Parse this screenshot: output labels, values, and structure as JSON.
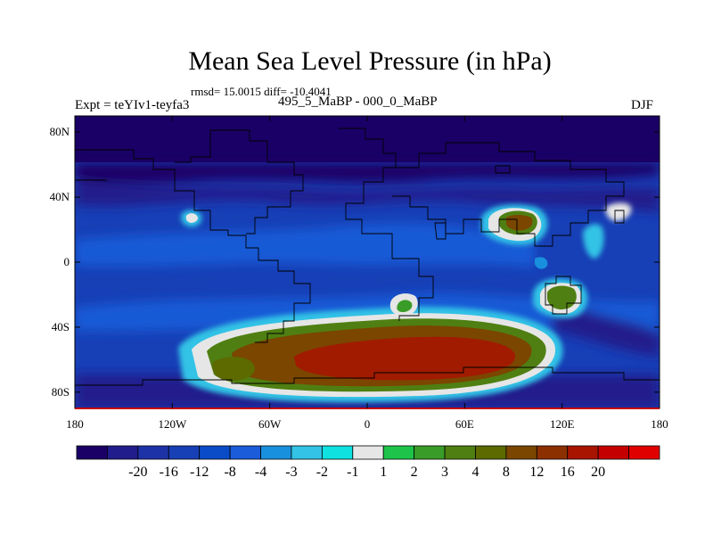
{
  "title": "Mean Sea Level Pressure (in hPa)",
  "stats": "rmsd= 15.0015 diff= -10.4041",
  "left_label": "Expt = teYIv1-teyfa3",
  "center_label": "495_5_MaBP - 000_0_MaBP",
  "right_label": "DJF",
  "lat_ticks": [
    {
      "label": "80N",
      "lat": 80
    },
    {
      "label": "40N",
      "lat": 40
    },
    {
      "label": "0",
      "lat": 0
    },
    {
      "label": "40S",
      "lat": -40
    },
    {
      "label": "80S",
      "lat": -80
    }
  ],
  "lon_ticks": [
    {
      "label": "180",
      "lon": -180
    },
    {
      "label": "120W",
      "lon": -120
    },
    {
      "label": "60W",
      "lon": -60
    },
    {
      "label": "0",
      "lon": 0
    },
    {
      "label": "60E",
      "lon": 60
    },
    {
      "label": "120E",
      "lon": 120
    },
    {
      "label": "180",
      "lon": 180
    }
  ],
  "colorbar": {
    "colors": [
      "#1a0066",
      "#211d8c",
      "#1e32a8",
      "#173fb6",
      "#0a4cc8",
      "#1a5cd9",
      "#1990dd",
      "#33c3e6",
      "#0fe0e0",
      "#e6e6e6",
      "#1ec44a",
      "#3a9c28",
      "#4f7f12",
      "#5c6a00",
      "#7a4600",
      "#8c3000",
      "#a81400",
      "#c40000",
      "#e00000"
    ],
    "labels": [
      "-20",
      "-16",
      "-12",
      "-8",
      "-4",
      "-3",
      "-2",
      "-1",
      "1",
      "2",
      "3",
      "4",
      "8",
      "12",
      "16",
      "20"
    ]
  }
}
